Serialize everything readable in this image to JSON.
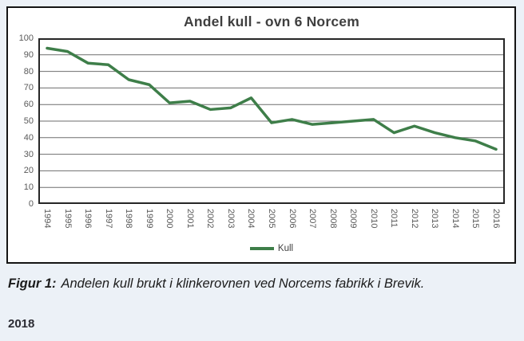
{
  "page": {
    "background_color": "#ecf1f7",
    "caption_label": "Figur 1:",
    "caption_text": "Andelen kull brukt i klinkerovnen ved Norcems fabrikk i Brevik.",
    "footer_year": "2018"
  },
  "chart_data": {
    "type": "line",
    "title": "Andel kull - ovn 6 Norcem",
    "categories": [
      "1994",
      "1995",
      "1996",
      "1997",
      "1998",
      "1999",
      "2000",
      "2001",
      "2002",
      "2003",
      "2004",
      "2005",
      "2006",
      "2007",
      "2008",
      "2009",
      "2010",
      "2011",
      "2012",
      "2013",
      "2014",
      "2015",
      "2016"
    ],
    "series": [
      {
        "name": "Kull",
        "color": "#3E7E49",
        "values": [
          94,
          92,
          85,
          84,
          75,
          72,
          61,
          62,
          57,
          58,
          64,
          49,
          51,
          48,
          49,
          50,
          51,
          43,
          47,
          43,
          40,
          38,
          33
        ]
      }
    ],
    "xlabel": "",
    "ylabel": "",
    "ylim": [
      0,
      100
    ],
    "ytick_step": 10,
    "grid": true,
    "legend_position": "bottom",
    "title_color": "#3f3f3f",
    "axis_label_color": "#595959",
    "gridline_color": "#6e6e6e",
    "plot_border_color": "#262626"
  }
}
